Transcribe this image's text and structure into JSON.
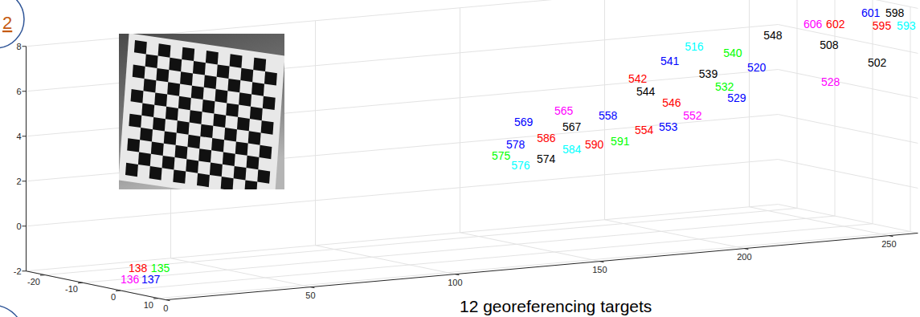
{
  "slide": {
    "badge": "2",
    "caption": "12 georeferencing targets"
  },
  "chart_data": {
    "type": "scatter3d",
    "marker": "text",
    "grid": true,
    "xlim": [
      0,
      260
    ],
    "ylim": [
      -25,
      12
    ],
    "zlim": [
      -2,
      8
    ],
    "xticks": [
      0,
      50,
      100,
      150,
      200,
      250
    ],
    "yticks": [
      -20,
      -10,
      0,
      10
    ],
    "zticks": [
      -2,
      0,
      2,
      4,
      6,
      8
    ],
    "labels": [
      "601",
      "598",
      "606",
      "602",
      "595",
      "593",
      "548",
      "508",
      "516",
      "540",
      "502",
      "541",
      "520",
      "539",
      "528",
      "532",
      "529",
      "542",
      "544",
      "546",
      "552",
      "553",
      "554",
      "565",
      "558",
      "569",
      "567",
      "591",
      "590",
      "586",
      "584",
      "578",
      "574",
      "576",
      "575",
      "138",
      "135",
      "136",
      "137"
    ],
    "colors": [
      "#0000ff",
      "#000000",
      "#ff00ff",
      "#ff0000",
      "#ff0000",
      "#00ffff",
      "#000000",
      "#000000",
      "#00ffff",
      "#00ff00",
      "#000000",
      "#0000ff",
      "#0000ff",
      "#000000",
      "#ff00ff",
      "#00ff00",
      "#0000ff",
      "#ff0000",
      "#000000",
      "#ff0000",
      "#ff00ff",
      "#0000ff",
      "#ff0000",
      "#ff00ff",
      "#0000ff",
      "#0000ff",
      "#000000",
      "#00ff00",
      "#ff0000",
      "#ff0000",
      "#00ffff",
      "#0000ff",
      "#000000",
      "#00ffff",
      "#00ff00",
      "#ff0000",
      "#00ff00",
      "#ff00ff",
      "#0000ff"
    ],
    "x": [
      250.9,
      252.7,
      238.7,
      240,
      246.9,
      254.0,
      230.1,
      239.1,
      208.1,
      213.6,
      250.5,
      202.3,
      220.6,
      210.4,
      235.7,
      214.7,
      216.3,
      193.8,
      192.7,
      195.1,
      198.4,
      191.3,
      189.5,
      169.6,
      175.7,
      159.6,
      165.8,
      174.7,
      169.7,
      159.6,
      160.6,
      154.2,
      150.4,
      146.8,
      145.3,
      5.4,
      6.6,
      5.2,
      5.9
    ],
    "y": [
      4,
      9,
      -2,
      3,
      10,
      11,
      -6,
      2,
      -10,
      -4,
      6,
      -12,
      -3,
      -8,
      5,
      -7,
      -5,
      -14,
      -11,
      -6,
      -3,
      -4,
      -9,
      -15,
      -8,
      -18,
      -10,
      -4,
      -7,
      -12,
      -6,
      -16,
      -5,
      -9,
      -13,
      -2,
      3,
      -4,
      1
    ],
    "z": [
      7.63,
      7.78,
      7.06,
      7.22,
      7.31,
      7.26,
      6.52,
      6.27,
      6.13,
      5.99,
      5.49,
      5.49,
      5.3,
      4.96,
      4.77,
      4.38,
      3.93,
      4.73,
      4.27,
      3.92,
      3.41,
      2.96,
      2.67,
      3.54,
      3.5,
      3.05,
      3.04,
      2.51,
      2.32,
      2.55,
      2.24,
      2.18,
      1.97,
      1.58,
      1.89,
      -1.13,
      -0.97,
      -1.7,
      -1.53
    ]
  }
}
